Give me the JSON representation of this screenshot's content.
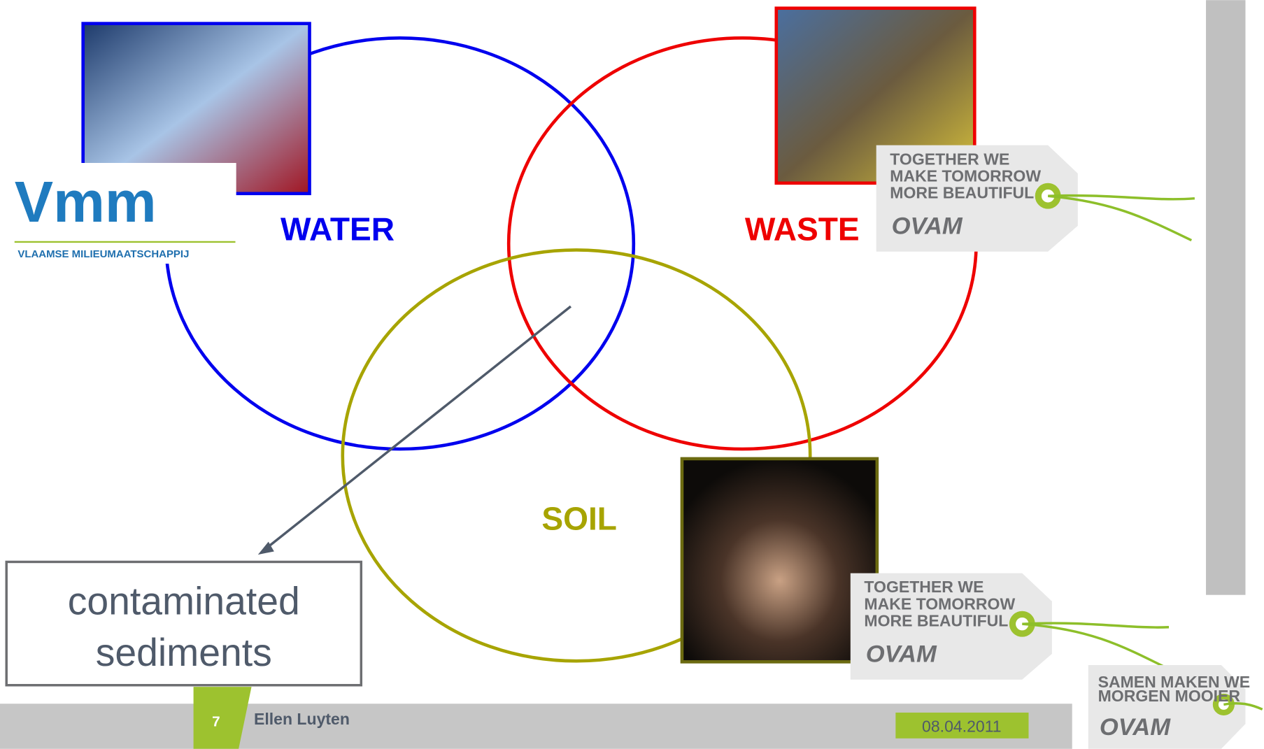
{
  "logo": {
    "mark": "Vmm",
    "name": "VLAAMSE MILIEUMAATSCHAPPIJ"
  },
  "labels": {
    "water": "WATER",
    "waste": "WASTE",
    "soil": "SOIL"
  },
  "callout": {
    "lines": [
      "contaminated",
      "sediments"
    ]
  },
  "tags": [
    {
      "lines": [
        "TOGETHER WE",
        "MAKE TOMORROW",
        "MORE BEAUTIFUL"
      ],
      "brand": "OVAM"
    },
    {
      "lines": [
        "TOGETHER WE",
        "MAKE TOMORROW",
        "MORE BEAUTIFUL"
      ],
      "brand": "OVAM"
    },
    {
      "lines": [
        "SAMEN MAKEN WE",
        "MORGEN MOOIER"
      ],
      "brand": "OVAM"
    }
  ],
  "footer": {
    "page": "7",
    "author": "Ellen Luyten",
    "date": "08.04.2011"
  }
}
